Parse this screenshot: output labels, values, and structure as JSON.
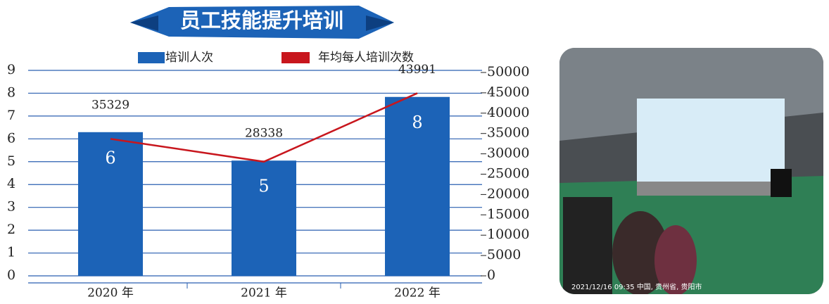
{
  "chart_data": {
    "type": "bar",
    "title": "员工技能提升培训",
    "categories": [
      "2020 年",
      "2021 年",
      "2022 年"
    ],
    "series": [
      {
        "name": "培训人次",
        "color": "#1c63b7",
        "values": [
          35329,
          28338,
          43991
        ],
        "axis": "y2"
      },
      {
        "name": "年均每人培训次数",
        "color": "#c8161d",
        "values": [
          6,
          5,
          8
        ],
        "type": "line"
      }
    ],
    "ylim": [
      0,
      9
    ],
    "yticks": [
      0,
      1,
      2,
      3,
      4,
      5,
      6,
      7,
      8,
      9
    ],
    "y2lim": [
      0,
      50000
    ],
    "y2ticks": [
      0,
      5000,
      10000,
      15000,
      20000,
      25000,
      30000,
      35000,
      40000,
      45000,
      50000
    ],
    "grid": true
  },
  "photo": {
    "caption": "2021/12/16 09:35 中国, 贵州省, 贵阳市"
  }
}
